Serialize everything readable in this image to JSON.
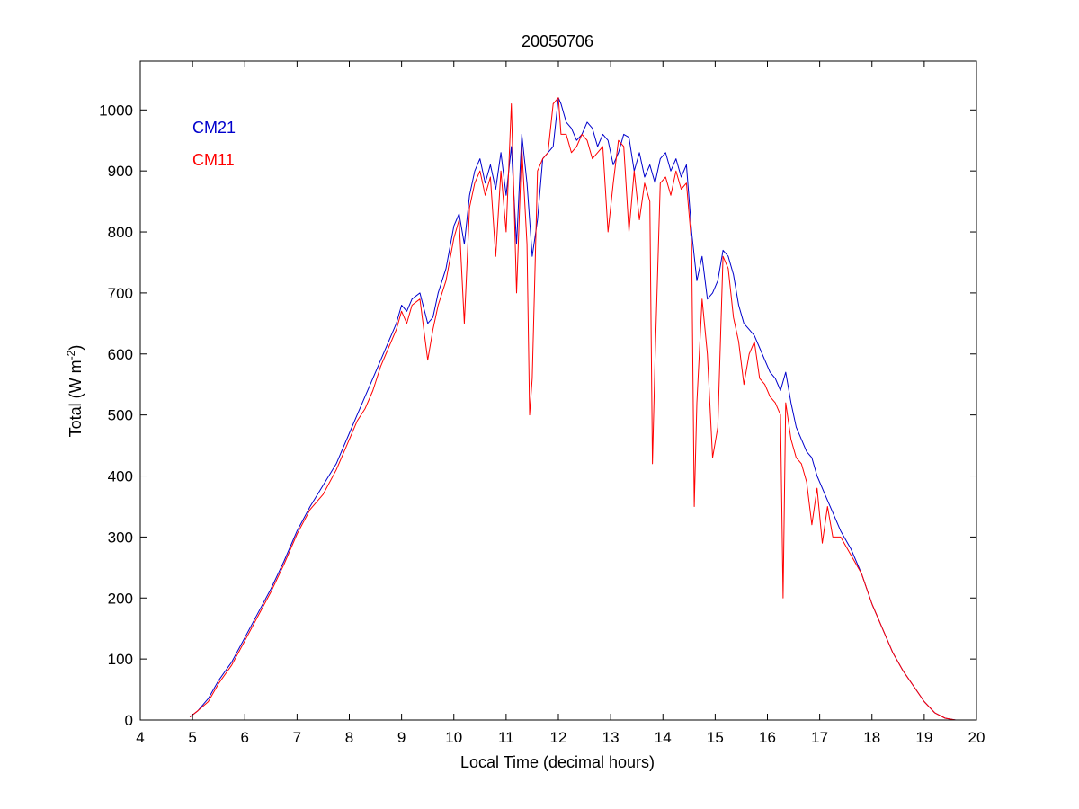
{
  "chart_data": {
    "type": "line",
    "title": "20050706",
    "xlabel": "Local Time (decimal hours)",
    "ylabel_base": "Total (W m",
    "ylabel_sup": "-2",
    "ylabel_end": ")",
    "xlim": [
      4,
      20
    ],
    "ylim": [
      0,
      1080
    ],
    "xticks": [
      4,
      5,
      6,
      7,
      8,
      9,
      10,
      11,
      12,
      13,
      14,
      15,
      16,
      17,
      18,
      19,
      20
    ],
    "yticks": [
      0,
      100,
      200,
      300,
      400,
      500,
      600,
      700,
      800,
      900,
      1000
    ],
    "grid": false,
    "legend_position": "top-left",
    "series": [
      {
        "name": "CM21",
        "color": "#0000cc",
        "x": [
          4.95,
          5.1,
          5.3,
          5.5,
          5.75,
          6.0,
          6.25,
          6.5,
          6.75,
          7.0,
          7.25,
          7.5,
          7.75,
          8.0,
          8.15,
          8.3,
          8.45,
          8.6,
          8.75,
          8.9,
          9.0,
          9.1,
          9.2,
          9.35,
          9.5,
          9.6,
          9.7,
          9.85,
          10.0,
          10.1,
          10.2,
          10.3,
          10.4,
          10.5,
          10.6,
          10.7,
          10.8,
          10.9,
          11.0,
          11.1,
          11.2,
          11.3,
          11.4,
          11.5,
          11.6,
          11.7,
          11.8,
          11.9,
          12.0,
          12.05,
          12.15,
          12.25,
          12.35,
          12.45,
          12.55,
          12.65,
          12.75,
          12.85,
          12.95,
          13.05,
          13.15,
          13.25,
          13.35,
          13.45,
          13.55,
          13.65,
          13.75,
          13.85,
          13.95,
          14.05,
          14.15,
          14.25,
          14.35,
          14.45,
          14.55,
          14.65,
          14.75,
          14.85,
          14.95,
          15.05,
          15.15,
          15.25,
          15.35,
          15.45,
          15.55,
          15.65,
          15.75,
          15.85,
          15.95,
          16.05,
          16.15,
          16.25,
          16.35,
          16.45,
          16.55,
          16.65,
          16.75,
          16.85,
          16.95,
          17.05,
          17.15,
          17.25,
          17.4,
          17.6,
          17.8,
          18.0,
          18.2,
          18.4,
          18.6,
          18.8,
          19.0,
          19.2,
          19.4,
          19.6
        ],
        "y": [
          5,
          15,
          35,
          65,
          95,
          135,
          175,
          215,
          260,
          310,
          350,
          385,
          420,
          470,
          500,
          530,
          560,
          590,
          620,
          650,
          680,
          670,
          690,
          700,
          650,
          660,
          700,
          740,
          810,
          830,
          780,
          860,
          900,
          920,
          880,
          910,
          870,
          930,
          860,
          940,
          780,
          960,
          880,
          760,
          820,
          920,
          930,
          940,
          1020,
          1010,
          980,
          970,
          950,
          960,
          980,
          970,
          940,
          960,
          950,
          910,
          930,
          960,
          955,
          900,
          930,
          890,
          910,
          880,
          920,
          930,
          900,
          920,
          890,
          910,
          800,
          720,
          760,
          690,
          700,
          720,
          770,
          760,
          730,
          680,
          650,
          640,
          630,
          610,
          590,
          570,
          560,
          540,
          570,
          520,
          480,
          460,
          440,
          430,
          400,
          380,
          360,
          340,
          310,
          280,
          240,
          190,
          150,
          110,
          80,
          55,
          30,
          12,
          3,
          0
        ]
      },
      {
        "name": "CM11",
        "color": "#ff0000",
        "x": [
          4.95,
          5.1,
          5.3,
          5.5,
          5.75,
          6.0,
          6.25,
          6.5,
          6.75,
          7.0,
          7.25,
          7.5,
          7.75,
          8.0,
          8.15,
          8.3,
          8.45,
          8.6,
          8.75,
          8.9,
          9.0,
          9.1,
          9.2,
          9.35,
          9.5,
          9.6,
          9.7,
          9.85,
          10.0,
          10.1,
          10.2,
          10.3,
          10.4,
          10.5,
          10.6,
          10.7,
          10.8,
          10.9,
          11.0,
          11.1,
          11.2,
          11.3,
          11.4,
          11.45,
          11.5,
          11.6,
          11.7,
          11.8,
          11.9,
          12.0,
          12.05,
          12.15,
          12.25,
          12.35,
          12.45,
          12.55,
          12.65,
          12.75,
          12.85,
          12.95,
          13.05,
          13.15,
          13.25,
          13.35,
          13.45,
          13.55,
          13.65,
          13.75,
          13.8,
          13.85,
          13.95,
          14.05,
          14.15,
          14.25,
          14.35,
          14.45,
          14.55,
          14.6,
          14.65,
          14.75,
          14.85,
          14.95,
          15.05,
          15.15,
          15.25,
          15.35,
          15.45,
          15.55,
          15.65,
          15.75,
          15.85,
          15.95,
          16.05,
          16.15,
          16.25,
          16.3,
          16.35,
          16.45,
          16.55,
          16.65,
          16.75,
          16.85,
          16.95,
          17.05,
          17.15,
          17.25,
          17.4,
          17.6,
          17.8,
          18.0,
          18.2,
          18.4,
          18.6,
          18.8,
          19.0,
          19.2,
          19.4,
          19.6
        ],
        "y": [
          5,
          15,
          30,
          60,
          90,
          130,
          170,
          210,
          255,
          305,
          345,
          370,
          410,
          460,
          490,
          510,
          540,
          580,
          610,
          640,
          670,
          650,
          680,
          690,
          590,
          640,
          680,
          720,
          790,
          820,
          650,
          840,
          880,
          900,
          860,
          890,
          760,
          900,
          800,
          1010,
          700,
          940,
          780,
          500,
          560,
          900,
          920,
          930,
          1010,
          1020,
          960,
          960,
          930,
          940,
          960,
          950,
          920,
          930,
          940,
          800,
          880,
          950,
          940,
          800,
          900,
          820,
          880,
          850,
          420,
          590,
          880,
          890,
          860,
          900,
          870,
          880,
          780,
          350,
          520,
          690,
          600,
          430,
          480,
          760,
          740,
          660,
          620,
          550,
          600,
          620,
          560,
          550,
          530,
          520,
          500,
          200,
          520,
          460,
          430,
          420,
          390,
          320,
          380,
          290,
          350,
          300,
          300,
          270,
          240,
          190,
          150,
          110,
          80,
          55,
          30,
          12,
          3,
          0
        ]
      }
    ]
  }
}
